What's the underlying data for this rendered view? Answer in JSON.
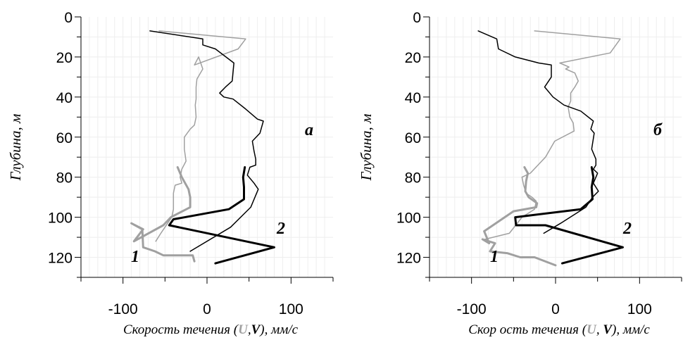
{
  "chart_data": [
    {
      "type": "line",
      "panel_label": "а",
      "ylabel": "Глубина, м",
      "xlabel": {
        "prefix": "Скорость течения (",
        "u": "U",
        "comma": ",",
        "v": "V",
        "suffix": "), мм/с"
      },
      "xlim": [
        -150,
        150
      ],
      "ylim": [
        0,
        130
      ],
      "y_inverted": true,
      "x_ticks": [
        "-100",
        "0",
        "100"
      ],
      "y_ticks": [
        "0",
        "20",
        "40",
        "60",
        "80",
        "100",
        "120"
      ],
      "series": [
        {
          "name": "",
          "color": "#a0a0a0",
          "width": 1.5,
          "points": [
            [
              -57,
              7
            ],
            [
              46,
              11
            ],
            [
              37,
              16
            ],
            [
              -15,
              24
            ],
            [
              -10,
              20
            ],
            [
              -5,
              26
            ],
            [
              -12,
              31
            ],
            [
              -13,
              35
            ],
            [
              -13,
              41
            ],
            [
              -14,
              44
            ],
            [
              -13,
              50
            ],
            [
              -15,
              54
            ],
            [
              -20,
              56
            ],
            [
              -27,
              60
            ],
            [
              -27,
              66
            ],
            [
              -25,
              72
            ],
            [
              -30,
              76
            ],
            [
              -32,
              80
            ],
            [
              -30,
              83
            ],
            [
              -38,
              84
            ],
            [
              -40,
              88
            ],
            [
              -40,
              96
            ],
            [
              -42,
              100
            ],
            [
              -55,
              108
            ],
            [
              -61,
              112
            ]
          ]
        },
        {
          "name": "",
          "color": "#000000",
          "width": 1.5,
          "points": [
            [
              -68,
              7
            ],
            [
              -5,
              11
            ],
            [
              -5,
              14
            ],
            [
              10,
              16
            ],
            [
              32,
              23
            ],
            [
              30,
              32
            ],
            [
              22,
              35
            ],
            [
              15,
              38
            ],
            [
              20,
              40
            ],
            [
              31,
              41
            ],
            [
              46,
              46
            ],
            [
              60,
              51
            ],
            [
              67,
              52
            ],
            [
              63,
              58
            ],
            [
              54,
              62
            ],
            [
              56,
              67
            ],
            [
              58,
              71
            ],
            [
              58,
              74
            ],
            [
              51,
              75
            ],
            [
              48,
              79
            ],
            [
              56,
              83
            ],
            [
              61,
              86
            ],
            [
              52,
              95
            ],
            [
              28,
              105
            ],
            [
              -20,
              117
            ]
          ]
        },
        {
          "name": "1",
          "color": "#a0a0a0",
          "width": 3,
          "points": [
            [
              -35,
              75
            ],
            [
              -30,
              80
            ],
            [
              -22,
              86
            ],
            [
              -20,
              90
            ],
            [
              -20,
              95
            ],
            [
              -43,
              100
            ],
            [
              -52,
              104
            ],
            [
              -87,
              112
            ],
            [
              -76,
              106
            ],
            [
              -90,
              103
            ],
            [
              -77,
              106
            ],
            [
              -76,
              115
            ],
            [
              -62,
              117
            ],
            [
              -52,
              119
            ],
            [
              -17,
              119
            ],
            [
              -15,
              122
            ]
          ]
        },
        {
          "name": "2",
          "color": "#000000",
          "width": 3,
          "points": [
            [
              45,
              75
            ],
            [
              43,
              80
            ],
            [
              44,
              85
            ],
            [
              44,
              91
            ],
            [
              26,
              96
            ],
            [
              -40,
              101
            ],
            [
              -45,
              104
            ],
            [
              80,
              115
            ],
            [
              10,
              123
            ]
          ]
        }
      ]
    },
    {
      "type": "line",
      "panel_label": "б",
      "ylabel": "Глубина, м",
      "xlabel": {
        "prefix": "Скор ость течения (",
        "u": "U",
        "comma": ", ",
        "v": "V",
        "suffix": "), мм/с"
      },
      "xlim": [
        -150,
        150
      ],
      "ylim": [
        0,
        130
      ],
      "y_inverted": true,
      "x_ticks": [
        "-100",
        "0",
        "100"
      ],
      "y_ticks": [
        "0",
        "20",
        "40",
        "60",
        "80",
        "100",
        "120"
      ],
      "series": [
        {
          "name": "",
          "color": "#a0a0a0",
          "width": 1.5,
          "points": [
            [
              -25,
              7
            ],
            [
              77,
              11
            ],
            [
              65,
              18
            ],
            [
              5,
              23
            ],
            [
              16,
              25
            ],
            [
              12,
              26
            ],
            [
              23,
              28
            ],
            [
              27,
              32
            ],
            [
              23,
              35
            ],
            [
              18,
              38
            ],
            [
              18,
              42
            ],
            [
              15,
              45
            ],
            [
              17,
              50
            ],
            [
              21,
              53
            ],
            [
              22,
              57
            ],
            [
              -1,
              62
            ],
            [
              -12,
              70
            ],
            [
              -30,
              78
            ],
            [
              -40,
              80
            ],
            [
              -38,
              84
            ],
            [
              -35,
              88
            ],
            [
              -28,
              90
            ],
            [
              -23,
              92
            ],
            [
              -25,
              96
            ],
            [
              -40,
              100
            ],
            [
              -55,
              108
            ],
            [
              -84,
              111
            ]
          ]
        },
        {
          "name": "",
          "color": "#000000",
          "width": 1.5,
          "points": [
            [
              -92,
              7
            ],
            [
              -70,
              11
            ],
            [
              -68,
              16
            ],
            [
              -48,
              20
            ],
            [
              -20,
              23
            ],
            [
              -5,
              24
            ],
            [
              -5,
              30
            ],
            [
              -13,
              35
            ],
            [
              -3,
              40
            ],
            [
              10,
              44
            ],
            [
              30,
              47
            ],
            [
              45,
              52
            ],
            [
              42,
              56
            ],
            [
              46,
              58
            ],
            [
              43,
              66
            ],
            [
              48,
              71
            ],
            [
              48,
              74
            ],
            [
              45,
              76
            ],
            [
              50,
              78
            ],
            [
              48,
              80
            ],
            [
              45,
              83
            ],
            [
              51,
              87
            ],
            [
              44,
              90
            ],
            [
              36,
              95
            ],
            [
              6,
              103
            ],
            [
              -14,
              108
            ]
          ]
        },
        {
          "name": "1",
          "color": "#a0a0a0",
          "width": 3,
          "points": [
            [
              -37,
              75
            ],
            [
              -33,
              78
            ],
            [
              -35,
              82
            ],
            [
              -36,
              87
            ],
            [
              -32,
              90
            ],
            [
              -22,
              93
            ],
            [
              -23,
              95
            ],
            [
              -50,
              97
            ],
            [
              -85,
              107
            ],
            [
              -79,
              113
            ],
            [
              -87,
              111
            ],
            [
              -72,
              113
            ],
            [
              -78,
              117
            ],
            [
              -57,
              118
            ],
            [
              -42,
              120
            ],
            [
              -25,
              120
            ],
            [
              0,
              124
            ]
          ]
        },
        {
          "name": "2",
          "color": "#000000",
          "width": 3,
          "points": [
            [
              43,
              75
            ],
            [
              45,
              80
            ],
            [
              43,
              85
            ],
            [
              44,
              91
            ],
            [
              30,
              96
            ],
            [
              -48,
              100
            ],
            [
              -47,
              104
            ],
            [
              -12,
              104
            ],
            [
              80,
              115
            ],
            [
              8,
              123
            ]
          ]
        }
      ]
    }
  ]
}
